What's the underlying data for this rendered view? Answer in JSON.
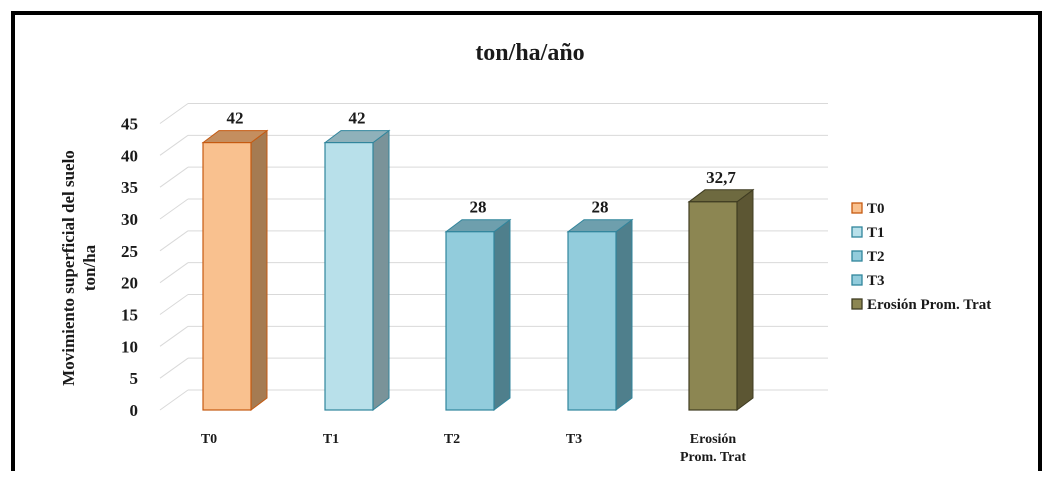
{
  "chart_data": {
    "type": "bar",
    "title": "ton/ha/año",
    "ylabel": [
      "Movimiento superficial del suelo",
      "ton/ha"
    ],
    "xlabel": "",
    "ylim": [
      0,
      45
    ],
    "yticks": [
      0,
      5,
      10,
      15,
      20,
      25,
      30,
      35,
      40,
      45
    ],
    "grid": true,
    "legend_position": "right",
    "categories": [
      [
        "T0"
      ],
      [
        "T1"
      ],
      [
        "T2"
      ],
      [
        "T3"
      ],
      [
        "Erosión",
        "Prom. Trat"
      ]
    ],
    "values": [
      42,
      42,
      28,
      28,
      32.7
    ],
    "data_labels": [
      "42",
      "42",
      "28",
      "28",
      "32,7"
    ],
    "legend": [
      "T0",
      "T1",
      "T2",
      "T3",
      "Erosión Prom. Trat"
    ],
    "colors": [
      {
        "front": "#F9C18F",
        "side": "#A57B52",
        "top": "#C48E5F",
        "stroke": "#C55A11"
      },
      {
        "front": "#B8E0EA",
        "side": "#7A9399",
        "top": "#8FB1BA",
        "stroke": "#31859C"
      },
      {
        "front": "#92CCDC",
        "side": "#4F7F8C",
        "top": "#6E9FAD",
        "stroke": "#31859C"
      },
      {
        "front": "#92CCDC",
        "side": "#4F7F8C",
        "top": "#6E9FAD",
        "stroke": "#31859C"
      },
      {
        "front": "#8C8652",
        "side": "#5C5633",
        "top": "#6E6A40",
        "stroke": "#3F3C22"
      }
    ]
  }
}
